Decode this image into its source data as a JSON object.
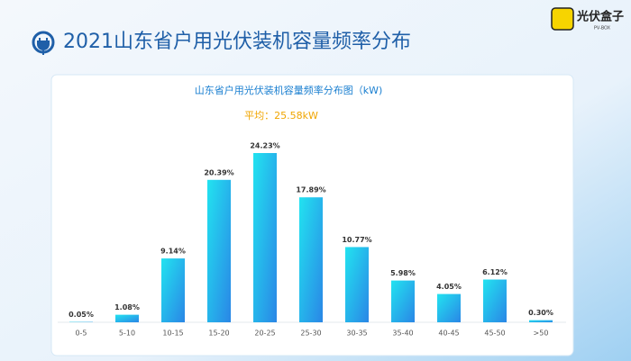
{
  "header": {
    "title": "2021山东省户用光伏装机容量频率分布",
    "logo": "光伏盒子",
    "logo_sub": "PV-BOX"
  },
  "chart_data": {
    "type": "bar",
    "title": "山东省户用光伏装机容量频率分布图（kW)",
    "subtitle": "平均：25.58kW",
    "categories": [
      "0-5",
      "5-10",
      "10-15",
      "15-20",
      "20-25",
      "25-30",
      "30-35",
      "35-40",
      "40-45",
      "45-50",
      ">50"
    ],
    "values": [
      0.05,
      1.08,
      9.14,
      20.39,
      24.23,
      17.89,
      10.77,
      5.98,
      4.05,
      6.12,
      0.3
    ],
    "value_labels": [
      "0.05%",
      "1.08%",
      "9.14%",
      "20.39%",
      "24.23%",
      "17.89%",
      "10.77%",
      "5.98%",
      "4.05%",
      "6.12%",
      "0.30%"
    ],
    "color": "#1fc6ee"
  }
}
